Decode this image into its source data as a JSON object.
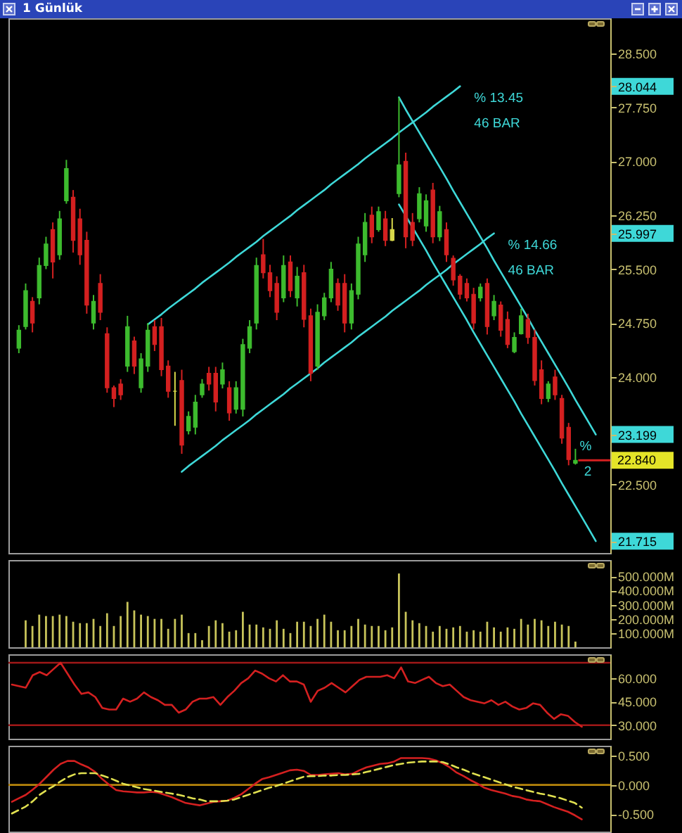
{
  "chart_data": [
    {
      "type": "candlestick",
      "title": "1 Günlük",
      "categories": [
        null,
        null,
        null,
        null,
        null,
        null,
        null,
        null,
        null,
        null,
        null,
        null,
        null,
        null,
        null,
        null,
        null,
        null,
        null,
        null,
        null,
        null,
        null,
        null,
        null,
        null,
        null,
        null,
        null,
        null,
        null,
        null,
        null,
        null,
        null,
        null,
        null,
        null,
        null,
        null,
        null,
        null,
        null,
        null,
        null,
        null,
        null,
        null,
        null,
        null,
        null,
        null,
        null,
        null,
        null,
        null,
        null,
        null,
        null,
        null,
        null,
        null,
        null,
        null,
        null,
        null,
        null,
        null,
        null,
        null,
        null,
        null,
        null,
        null,
        null,
        null,
        null,
        null,
        null,
        null,
        null,
        null,
        null,
        null,
        null,
        null
      ],
      "ohlc": [
        [
          24.4,
          24.72,
          24.33,
          24.65
        ],
        [
          24.7,
          25.3,
          24.66,
          25.2
        ],
        [
          25.05,
          25.11,
          24.62,
          24.75
        ],
        [
          25.1,
          25.66,
          25.01,
          25.55
        ],
        [
          25.55,
          25.95,
          25.5,
          25.85
        ],
        [
          26.05,
          26.15,
          25.37,
          25.6
        ],
        [
          25.7,
          26.31,
          25.63,
          26.2
        ],
        [
          26.45,
          27.02,
          26.41,
          26.9
        ],
        [
          26.5,
          26.6,
          25.73,
          25.9
        ],
        [
          26.2,
          26.34,
          25.56,
          25.7
        ],
        [
          25.9,
          26.02,
          24.88,
          25.0
        ],
        [
          24.75,
          25.14,
          24.66,
          25.05
        ],
        [
          25.3,
          25.43,
          24.79,
          24.9
        ],
        [
          24.6,
          24.69,
          23.78,
          23.85
        ],
        [
          23.85,
          23.88,
          23.58,
          23.7
        ],
        [
          23.9,
          23.97,
          23.68,
          23.75
        ],
        [
          24.15,
          24.85,
          24.07,
          24.7
        ],
        [
          24.5,
          24.56,
          24.04,
          24.15
        ],
        [
          23.85,
          24.33,
          23.78,
          24.25
        ],
        [
          24.15,
          24.75,
          24.07,
          24.65
        ],
        [
          24.7,
          24.79,
          24.36,
          24.45
        ],
        [
          24.7,
          24.82,
          24.01,
          24.1
        ],
        [
          24.15,
          24.23,
          23.71,
          23.8
        ],
        [
          23.8,
          24.07,
          23.32,
          23.8
        ],
        [
          23.95,
          24.1,
          22.93,
          23.05
        ],
        [
          23.25,
          23.52,
          23.2,
          23.45
        ],
        [
          23.3,
          23.75,
          23.2,
          23.65
        ],
        [
          23.75,
          23.97,
          23.71,
          23.9
        ],
        [
          24.05,
          24.14,
          23.81,
          23.9
        ],
        [
          24.05,
          24.14,
          23.52,
          23.65
        ],
        [
          23.9,
          24.2,
          23.84,
          24.1
        ],
        [
          23.85,
          23.94,
          23.39,
          23.5
        ],
        [
          23.55,
          23.94,
          23.49,
          23.85
        ],
        [
          23.55,
          24.53,
          23.45,
          24.45
        ],
        [
          24.4,
          24.79,
          24.33,
          24.7
        ],
        [
          24.75,
          25.66,
          24.66,
          25.55
        ],
        [
          25.7,
          25.92,
          25.37,
          25.45
        ],
        [
          25.45,
          25.56,
          25.11,
          25.2
        ],
        [
          25.3,
          25.4,
          24.79,
          24.9
        ],
        [
          25.1,
          25.69,
          25.04,
          25.55
        ],
        [
          25.6,
          25.69,
          25.11,
          25.2
        ],
        [
          25.1,
          25.53,
          24.98,
          25.4
        ],
        [
          25.45,
          25.56,
          24.69,
          24.8
        ],
        [
          24.85,
          24.95,
          23.94,
          24.05
        ],
        [
          24.15,
          25.01,
          24.1,
          24.9
        ],
        [
          24.85,
          25.17,
          24.79,
          25.1
        ],
        [
          25.1,
          25.6,
          25.04,
          25.5
        ],
        [
          25.3,
          25.37,
          24.92,
          25.0
        ],
        [
          25.3,
          25.43,
          24.62,
          24.75
        ],
        [
          24.75,
          25.3,
          24.66,
          25.2
        ],
        [
          25.15,
          25.95,
          25.08,
          25.85
        ],
        [
          25.7,
          26.28,
          25.6,
          26.15
        ],
        [
          26.25,
          26.37,
          25.86,
          25.95
        ],
        [
          26.05,
          26.37,
          26.02,
          26.3
        ],
        [
          26.2,
          26.31,
          25.82,
          25.9
        ],
        [
          26.05,
          26.21,
          25.89,
          25.9
        ],
        [
          26.55,
          27.89,
          26.5,
          26.95
        ],
        [
          27.0,
          27.12,
          25.79,
          25.95
        ],
        [
          26.15,
          26.28,
          25.82,
          25.9
        ],
        [
          26.2,
          26.64,
          26.15,
          26.55
        ],
        [
          26.1,
          26.54,
          26.02,
          26.45
        ],
        [
          26.6,
          26.7,
          25.86,
          25.95
        ],
        [
          25.95,
          26.38,
          25.89,
          26.3
        ],
        [
          26.05,
          26.15,
          25.6,
          25.7
        ],
        [
          25.65,
          25.69,
          25.27,
          25.35
        ],
        [
          25.4,
          25.43,
          25.08,
          25.15
        ],
        [
          25.3,
          25.37,
          25.05,
          25.1
        ],
        [
          25.15,
          25.24,
          24.66,
          24.75
        ],
        [
          25.1,
          25.3,
          25.05,
          25.25
        ],
        [
          25.3,
          25.37,
          24.59,
          24.7
        ],
        [
          24.85,
          25.14,
          24.79,
          25.05
        ],
        [
          25.0,
          25.05,
          24.56,
          24.65
        ],
        [
          24.8,
          24.91,
          24.4,
          24.45
        ],
        [
          24.35,
          24.62,
          24.33,
          24.55
        ],
        [
          24.6,
          24.95,
          24.59,
          24.85
        ],
        [
          24.8,
          24.88,
          24.46,
          24.55
        ],
        [
          24.55,
          24.66,
          23.88,
          23.95
        ],
        [
          24.1,
          24.23,
          23.62,
          23.7
        ],
        [
          23.7,
          23.94,
          23.65,
          23.9
        ],
        [
          24.0,
          24.1,
          23.68,
          23.75
        ],
        [
          23.7,
          23.75,
          23.07,
          23.15
        ],
        [
          23.3,
          23.36,
          22.77,
          22.85
        ],
        [
          22.8,
          23.0,
          22.78,
          22.84
        ],
        null,
        null,
        null
      ],
      "colors": [
        "#3dbb2e",
        "#3dbb2e",
        "#d42020",
        "#3dbb2e",
        "#3dbb2e",
        "#d42020",
        "#3dbb2e",
        "#3dbb2e",
        "#d42020",
        "#d42020",
        "#d42020",
        "#3dbb2e",
        "#d42020",
        "#d42020",
        "#d42020",
        "#d42020",
        "#3dbb2e",
        "#d42020",
        "#3dbb2e",
        "#3dbb2e",
        "#d42020",
        "#d42020",
        "#d42020",
        "#d8d84a",
        "#d42020",
        "#3dbb2e",
        "#3dbb2e",
        "#3dbb2e",
        "#d42020",
        "#d42020",
        "#3dbb2e",
        "#d42020",
        "#3dbb2e",
        "#3dbb2e",
        "#3dbb2e",
        "#3dbb2e",
        "#d42020",
        "#d42020",
        "#d42020",
        "#3dbb2e",
        "#d42020",
        "#3dbb2e",
        "#d42020",
        "#d42020",
        "#3dbb2e",
        "#3dbb2e",
        "#3dbb2e",
        "#d42020",
        "#d42020",
        "#3dbb2e",
        "#3dbb2e",
        "#3dbb2e",
        "#d42020",
        "#3dbb2e",
        "#d42020",
        "#d8d84a",
        "#3dbb2e",
        "#d42020",
        "#d42020",
        "#3dbb2e",
        "#3dbb2e",
        "#d42020",
        "#3dbb2e",
        "#d42020",
        "#d42020",
        "#d42020",
        "#d42020",
        "#d42020",
        "#3dbb2e",
        "#d42020",
        "#3dbb2e",
        "#d42020",
        "#d42020",
        "#3dbb2e",
        "#3dbb2e",
        "#d42020",
        "#d42020",
        "#d42020",
        "#3dbb2e",
        "#d42020",
        "#d42020",
        "#d42020",
        "#3dbb2e",
        null,
        null,
        null
      ],
      "value_labels": [
        null,
        null,
        null,
        null,
        null,
        null,
        null,
        null,
        null,
        null,
        null,
        null,
        null,
        null,
        null,
        null,
        null,
        null,
        null,
        null,
        null,
        null,
        null,
        null,
        null,
        null,
        null,
        null,
        null,
        null,
        null,
        null,
        null,
        null,
        null,
        null,
        null,
        null,
        null,
        null,
        null,
        null,
        null,
        null,
        null,
        null,
        null,
        null,
        null,
        null,
        null,
        null,
        null,
        null,
        null,
        null,
        null,
        null,
        null,
        null,
        null,
        null,
        null,
        null,
        null,
        null,
        null,
        null,
        null,
        null,
        null,
        null,
        null,
        null,
        null,
        null,
        null,
        null,
        null,
        null,
        null,
        null,
        "22.840",
        null,
        null,
        null
      ],
      "series": [
        {
          "type": "line",
          "name": "% 13.45",
          "color": "#3ed8d8",
          "values": [
            null,
            null,
            null,
            null,
            null,
            null,
            null,
            null,
            null,
            null,
            null,
            null,
            null,
            null,
            null,
            null,
            null,
            null,
            null,
            24.73,
            24.8,
            24.87,
            24.95,
            25.02,
            25.09,
            25.16,
            25.23,
            25.31,
            25.38,
            25.45,
            25.52,
            25.59,
            25.67,
            25.74,
            25.81,
            25.88,
            25.96,
            26.03,
            26.1,
            26.17,
            26.24,
            26.32,
            26.39,
            26.46,
            26.53,
            26.6,
            26.68,
            26.75,
            26.82,
            26.89,
            26.96,
            27.04,
            27.11,
            27.18,
            27.25,
            27.32,
            27.4,
            27.47,
            27.54,
            27.61,
            27.68,
            27.76,
            27.83,
            27.9,
            27.97,
            28.044,
            null,
            null,
            null,
            null,
            null,
            null,
            null,
            null,
            null,
            null,
            null,
            null,
            null,
            null,
            null,
            null,
            null,
            null,
            null,
            null
          ]
        },
        {
          "type": "line",
          "name": "% 14.66",
          "color": "#3ed8d8",
          "values": [
            null,
            null,
            null,
            null,
            null,
            null,
            null,
            null,
            null,
            null,
            null,
            null,
            null,
            null,
            null,
            null,
            null,
            null,
            null,
            null,
            null,
            null,
            null,
            null,
            22.68,
            22.76,
            22.83,
            22.9,
            22.97,
            23.04,
            23.12,
            23.19,
            23.26,
            23.33,
            23.4,
            23.48,
            23.55,
            23.62,
            23.69,
            23.76,
            23.84,
            23.91,
            23.98,
            24.05,
            24.12,
            24.2,
            24.27,
            24.34,
            24.41,
            24.48,
            24.56,
            24.63,
            24.7,
            24.77,
            24.84,
            24.92,
            24.99,
            25.06,
            25.13,
            25.2,
            25.28,
            25.35,
            25.42,
            25.49,
            25.57,
            25.64,
            25.71,
            25.78,
            25.85,
            25.93,
            25.997,
            null,
            null,
            null,
            null,
            null,
            null,
            null,
            null,
            null,
            null,
            null,
            null,
            null,
            null,
            null
          ]
        },
        {
          "type": "line",
          "name": "%",
          "color": "#3ed8d8",
          "values": [
            null,
            null,
            null,
            null,
            null,
            null,
            null,
            null,
            null,
            null,
            null,
            null,
            null,
            null,
            null,
            null,
            null,
            null,
            null,
            null,
            null,
            null,
            null,
            null,
            null,
            null,
            null,
            null,
            null,
            null,
            null,
            null,
            null,
            null,
            null,
            null,
            null,
            null,
            null,
            null,
            null,
            null,
            null,
            null,
            null,
            null,
            null,
            null,
            null,
            null,
            null,
            null,
            null,
            null,
            null,
            null,
            27.89,
            27.72,
            27.56,
            27.4,
            27.24,
            27.08,
            26.92,
            26.76,
            26.59,
            26.43,
            26.27,
            26.11,
            25.95,
            25.79,
            25.62,
            25.46,
            25.3,
            25.14,
            24.98,
            24.82,
            24.65,
            24.49,
            24.33,
            24.17,
            24.01,
            23.85,
            23.68,
            23.52,
            23.36,
            23.199
          ]
        },
        {
          "type": "line",
          "color": "#3ed8d8",
          "values": [
            null,
            null,
            null,
            null,
            null,
            null,
            null,
            null,
            null,
            null,
            null,
            null,
            null,
            null,
            null,
            null,
            null,
            null,
            null,
            null,
            null,
            null,
            null,
            null,
            null,
            null,
            null,
            null,
            null,
            null,
            null,
            null,
            null,
            null,
            null,
            null,
            null,
            null,
            null,
            null,
            null,
            null,
            null,
            null,
            null,
            null,
            null,
            null,
            null,
            null,
            null,
            null,
            null,
            null,
            null,
            null,
            26.4,
            26.24,
            26.08,
            25.92,
            25.76,
            25.59,
            25.43,
            25.27,
            25.11,
            24.95,
            24.79,
            24.62,
            24.46,
            24.3,
            24.14,
            23.98,
            23.82,
            23.66,
            23.49,
            23.33,
            23.17,
            23.01,
            22.85,
            22.69,
            22.52,
            22.36,
            22.2,
            22.04,
            21.88,
            21.715
          ]
        }
      ],
      "ylim": [
        21.55,
        28.99
      ],
      "yticks": [
        {
          "value": 28.5,
          "label": "28.500"
        },
        28.044,
        {
          "value": 27.75,
          "label": "27.750"
        },
        {
          "value": 27,
          "label": "27.000"
        },
        {
          "value": 26.25,
          "label": "26.250"
        },
        25.997,
        {
          "value": 25.5,
          "label": "25.500"
        },
        {
          "value": 24.75,
          "label": "24.750"
        },
        {
          "value": 24,
          "label": "24.000"
        },
        23.199,
        {
          "value": 22.5,
          "label": "22.500"
        },
        21.715
      ],
      "tick_labels": "y",
      "annotations": [
        "46 BAR",
        "46 BAR",
        "2"
      ]
    },
    {
      "type": "bar",
      "categories": [
        null,
        null,
        null,
        null,
        null,
        null,
        null,
        null,
        null,
        null,
        null,
        null,
        null,
        null,
        null,
        null,
        null,
        null,
        null,
        null,
        null,
        null,
        null,
        null,
        null,
        null,
        null,
        null,
        null,
        null,
        null,
        null,
        null,
        null,
        null,
        null,
        null,
        null,
        null,
        null,
        null,
        null,
        null,
        null,
        null,
        null,
        null,
        null,
        null,
        null,
        null,
        null,
        null,
        null,
        null,
        null,
        null,
        null,
        null,
        null,
        null,
        null,
        null,
        null,
        null,
        null,
        null,
        null,
        null,
        null,
        null,
        null,
        null,
        null,
        null,
        null,
        null,
        null,
        null,
        null,
        null,
        null,
        null,
        null,
        null,
        null
      ],
      "values": [
        null,
        190000000,
        150000000,
        230000000,
        220000000,
        220000000,
        230000000,
        220000000,
        180000000,
        170000000,
        170000000,
        200000000,
        150000000,
        240000000,
        150000000,
        220000000,
        320000000,
        260000000,
        230000000,
        220000000,
        200000000,
        200000000,
        130000000,
        200000000,
        230000000,
        100000000,
        100000000,
        50000000,
        150000000,
        190000000,
        170000000,
        110000000,
        120000000,
        250000000,
        160000000,
        160000000,
        140000000,
        130000000,
        190000000,
        130000000,
        100000000,
        180000000,
        180000000,
        150000000,
        200000000,
        230000000,
        180000000,
        120000000,
        120000000,
        150000000,
        200000000,
        160000000,
        150000000,
        150000000,
        120000000,
        140000000,
        520000000,
        250000000,
        190000000,
        170000000,
        150000000,
        110000000,
        150000000,
        130000000,
        140000000,
        150000000,
        110000000,
        120000000,
        110000000,
        180000000,
        140000000,
        110000000,
        140000000,
        130000000,
        200000000,
        160000000,
        200000000,
        190000000,
        150000000,
        180000000,
        160000000,
        150000000,
        40000000,
        null,
        null,
        null
      ],
      "color": "#c8c45a",
      "ylim": [
        0,
        615000000
      ],
      "yticks": [
        {
          "value": 100000000,
          "label": "100.000M"
        },
        {
          "value": 200000000,
          "label": "200.000M"
        },
        {
          "value": 300000000,
          "label": "300.000M"
        },
        {
          "value": 400000000,
          "label": "400.000M"
        },
        {
          "value": 500000000,
          "label": "500.000M"
        }
      ],
      "tick_labels": "y"
    },
    {
      "type": "line",
      "categories": [
        null,
        null,
        null,
        null,
        null,
        null,
        null,
        null,
        null,
        null,
        null,
        null,
        null,
        null,
        null,
        null,
        null,
        null,
        null,
        null,
        null,
        null,
        null,
        null,
        null,
        null,
        null,
        null,
        null,
        null,
        null,
        null,
        null,
        null,
        null,
        null,
        null,
        null,
        null,
        null,
        null,
        null,
        null,
        null,
        null,
        null,
        null,
        null,
        null,
        null,
        null,
        null,
        null,
        null,
        null,
        null,
        null,
        null,
        null,
        null,
        null,
        null,
        null,
        null,
        null,
        null,
        null,
        null,
        null,
        null,
        null,
        null,
        null,
        null,
        null,
        null,
        null,
        null,
        null,
        null,
        null,
        null,
        null,
        null,
        null,
        null
      ],
      "series": [
        {
          "color": "#d42020",
          "values": [
            56,
            55,
            54,
            62,
            64,
            62,
            66,
            70,
            63,
            56,
            50,
            51,
            48,
            41,
            40,
            40,
            47,
            45,
            47,
            51,
            48,
            46,
            43,
            43,
            38,
            40,
            45,
            47,
            47,
            48,
            43,
            48,
            52,
            57,
            60,
            65,
            63,
            60,
            58,
            62,
            58,
            58,
            56,
            45,
            52,
            54,
            57,
            54,
            51,
            55,
            59,
            61,
            61,
            61,
            62,
            60,
            67,
            58,
            57,
            59,
            61,
            57,
            55,
            56,
            52,
            48,
            46,
            45,
            44,
            46,
            43,
            45,
            42,
            40,
            41,
            44,
            43,
            38,
            34,
            37,
            36,
            32,
            29,
            null,
            null,
            null
          ]
        }
      ],
      "ylim": [
        21.3,
        75.4
      ],
      "yticks": [
        {
          "value": 30,
          "label": "30.000"
        },
        {
          "value": 45,
          "label": "45.000"
        },
        {
          "value": 60,
          "label": "60.000"
        }
      ],
      "ref_lines": [
        {
          "axis": "y",
          "value": 70,
          "color": "#a01818"
        },
        {
          "axis": "y",
          "value": 30,
          "color": "#a01818"
        }
      ],
      "tick_labels": "y"
    },
    {
      "type": "line",
      "categories": [
        null,
        null,
        null,
        null,
        null,
        null,
        null,
        null,
        null,
        null,
        null,
        null,
        null,
        null,
        null,
        null,
        null,
        null,
        null,
        null,
        null,
        null,
        null,
        null,
        null,
        null,
        null,
        null,
        null,
        null,
        null,
        null,
        null,
        null,
        null,
        null,
        null,
        null,
        null,
        null,
        null,
        null,
        null,
        null,
        null,
        null,
        null,
        null,
        null,
        null,
        null,
        null,
        null,
        null,
        null,
        null,
        null,
        null,
        null,
        null,
        null,
        null,
        null,
        null,
        null,
        null,
        null,
        null,
        null,
        null,
        null,
        null,
        null,
        null,
        null,
        null,
        null,
        null,
        null,
        null,
        null,
        null,
        null,
        null,
        null,
        null
      ],
      "series": [
        {
          "color": "#d42020",
          "values": [
            -0.29,
            -0.23,
            -0.17,
            -0.08,
            0.02,
            0.14,
            0.26,
            0.36,
            0.41,
            0.41,
            0.35,
            0.3,
            0.22,
            0.1,
            0,
            -0.09,
            -0.11,
            -0.12,
            -0.13,
            -0.13,
            -0.12,
            -0.13,
            -0.17,
            -0.21,
            -0.26,
            -0.31,
            -0.33,
            -0.35,
            -0.32,
            -0.29,
            -0.28,
            -0.27,
            -0.22,
            -0.16,
            -0.07,
            0.02,
            0.1,
            0.13,
            0.17,
            0.21,
            0.25,
            0.26,
            0.24,
            0.17,
            0.17,
            0.18,
            0.19,
            0.2,
            0.18,
            0.19,
            0.25,
            0.3,
            0.33,
            0.36,
            0.37,
            0.4,
            0.46,
            0.46,
            0.46,
            0.46,
            0.45,
            0.42,
            0.37,
            0.3,
            0.21,
            0.15,
            0.08,
            0.02,
            -0.05,
            -0.09,
            -0.12,
            -0.15,
            -0.19,
            -0.21,
            -0.25,
            -0.27,
            -0.28,
            -0.33,
            -0.38,
            -0.42,
            -0.46,
            -0.52,
            -0.59,
            null,
            null,
            null
          ]
        },
        {
          "color": "#e0e050",
          "line_style": "dashed",
          "values": [
            -0.49,
            -0.43,
            -0.37,
            -0.28,
            -0.17,
            -0.09,
            -0.02,
            0.06,
            0.13,
            0.18,
            0.2,
            0.2,
            0.2,
            0.16,
            0.12,
            0.07,
            0.02,
            -0.01,
            -0.04,
            -0.07,
            -0.09,
            -0.11,
            -0.13,
            -0.15,
            -0.17,
            -0.2,
            -0.23,
            -0.25,
            -0.28,
            -0.28,
            -0.28,
            -0.27,
            -0.25,
            -0.21,
            -0.17,
            -0.13,
            -0.09,
            -0.05,
            -0.02,
            0.02,
            0.06,
            0.1,
            0.14,
            0.15,
            0.15,
            0.16,
            0.16,
            0.17,
            0.17,
            0.18,
            0.19,
            0.22,
            0.25,
            0.28,
            0.31,
            0.34,
            0.36,
            0.38,
            0.39,
            0.4,
            0.4,
            0.4,
            0.39,
            0.35,
            0.3,
            0.26,
            0.21,
            0.17,
            0.13,
            0.09,
            0.05,
            0.01,
            -0.03,
            -0.06,
            -0.09,
            -0.12,
            -0.15,
            -0.17,
            -0.2,
            -0.23,
            -0.27,
            -0.31,
            -0.39,
            null,
            null,
            null
          ]
        }
      ],
      "ylim": [
        -0.8,
        0.67
      ],
      "yticks": [
        {
          "value": -0.5,
          "label": "-0.500"
        },
        {
          "value": 0,
          "label": "0.000"
        },
        {
          "value": 0.5,
          "label": "0.500"
        }
      ],
      "ref_lines": [
        {
          "axis": "y",
          "value": 0,
          "color": "#b8860b"
        }
      ],
      "tick_labels": "y"
    }
  ]
}
